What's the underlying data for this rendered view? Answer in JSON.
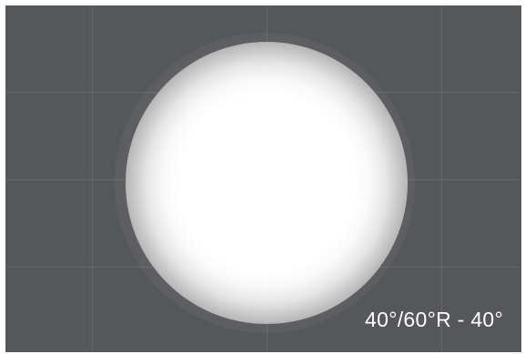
{
  "label": "40°/60°R - 40°",
  "colors": {
    "background": "#56575a",
    "beam": "#ffffff",
    "grid": "#6c6d70",
    "label": "#ffffff"
  }
}
